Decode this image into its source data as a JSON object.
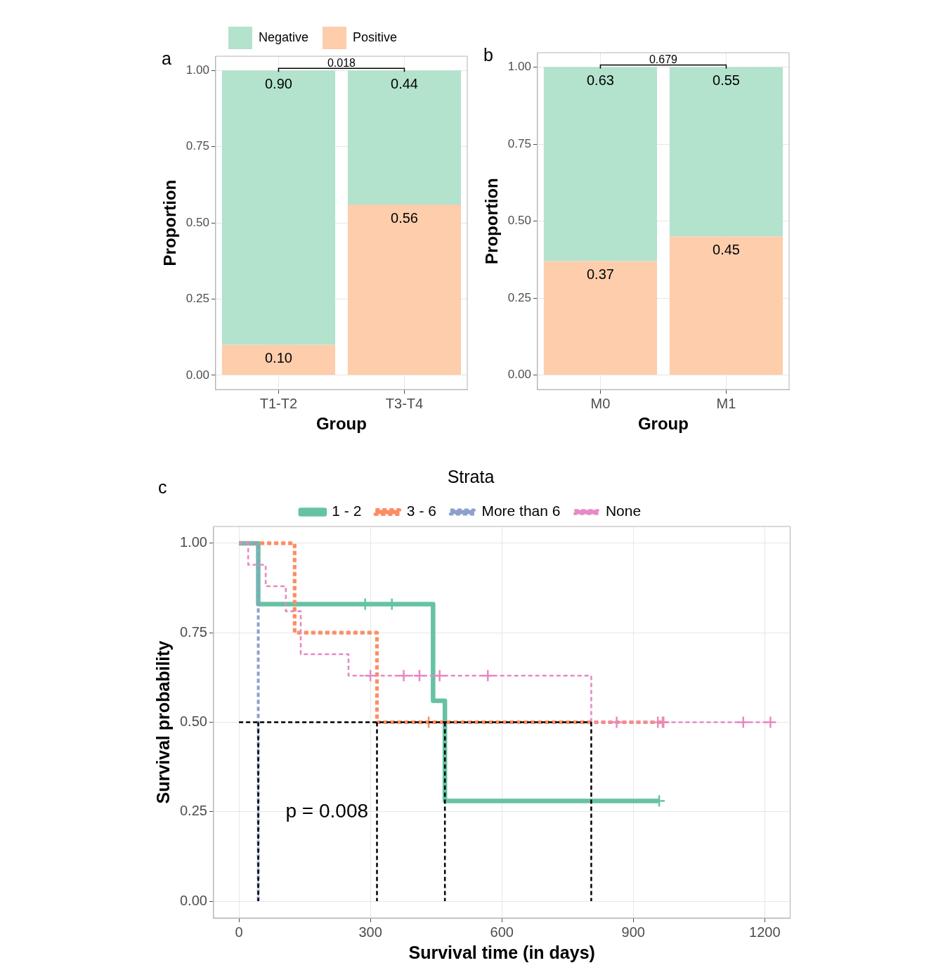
{
  "chart_data": [
    {
      "type": "bar",
      "stacked": true,
      "categories": [
        "T1-T2",
        "T3-T4"
      ],
      "xlabel": "Group",
      "ylabel": "Proportion",
      "ylim": [
        -0.047,
        1.047
      ],
      "yticks": [
        {
          "value": 0,
          "label": "0.00"
        },
        {
          "value": 0.25,
          "label": "0.25"
        },
        {
          "value": 0.5,
          "label": "0.50"
        },
        {
          "value": 0.75,
          "label": "0.75"
        },
        {
          "value": 1,
          "label": "1.00"
        }
      ],
      "grid": true,
      "legend": "top",
      "annotations": [
        "a",
        "0.018"
      ],
      "series": [
        {
          "name": "Positive",
          "color": "#fdcdac",
          "values": [
            0.1,
            0.56
          ],
          "value_labels": [
            "0.10",
            "0.56"
          ]
        },
        {
          "name": "Negative",
          "color": "#b3e2cd",
          "values": [
            0.9,
            0.44
          ],
          "value_labels": [
            "0.90",
            "0.44"
          ]
        }
      ]
    },
    {
      "type": "bar",
      "stacked": true,
      "categories": [
        "M0",
        "M1"
      ],
      "xlabel": "Group",
      "ylabel": "Proportion",
      "ylim": [
        -0.047,
        1.047
      ],
      "yticks": [
        {
          "value": 0,
          "label": "0.00"
        },
        {
          "value": 0.25,
          "label": "0.25"
        },
        {
          "value": 0.5,
          "label": "0.50"
        },
        {
          "value": 0.75,
          "label": "0.75"
        },
        {
          "value": 1,
          "label": "1.00"
        }
      ],
      "grid": true,
      "annotations": [
        "b",
        "0.679"
      ],
      "series": [
        {
          "color": "#fdcdac",
          "values": [
            0.37,
            0.45
          ],
          "value_labels": [
            "0.37",
            "0.45"
          ]
        },
        {
          "color": "#b3e2cd",
          "values": [
            0.63,
            0.55
          ],
          "value_labels": [
            "0.63",
            "0.55"
          ]
        }
      ]
    },
    {
      "type": "step",
      "xlabel": "Survival time (in days)",
      "ylabel": "Survival probability",
      "xlim": [
        -58,
        1258
      ],
      "ylim": [
        -0.047,
        1.047
      ],
      "xticks": [
        0,
        300,
        600,
        900,
        1200
      ],
      "yticks": [
        {
          "value": 0,
          "label": "0.00"
        },
        {
          "value": 0.25,
          "label": "0.25"
        },
        {
          "value": 0.5,
          "label": "0.50"
        },
        {
          "value": 0.75,
          "label": "0.75"
        },
        {
          "value": 1,
          "label": "1.00"
        }
      ],
      "grid": true,
      "legend": "top",
      "legend_title": "Strata",
      "annotations": [
        "c",
        "p = 0.008"
      ],
      "series": [
        {
          "name": "1 - 2",
          "color": "#66c2a5",
          "line_style": "solid",
          "x": [
            0,
            44,
            443,
            470,
            959
          ],
          "values": [
            1,
            0.83,
            0.56,
            0.28,
            0.28
          ]
        },
        {
          "name": "3 - 6",
          "color": "#fc8d62",
          "line_style": "dashed",
          "x": [
            0,
            127,
            315,
            970
          ],
          "values": [
            1,
            0.75,
            0.5,
            0.5
          ]
        },
        {
          "name": "More than 6",
          "color": "#8da0cb",
          "line_style": "dashed",
          "x": [
            0,
            44
          ],
          "values": [
            1,
            0
          ]
        },
        {
          "name": "None",
          "color": "#e78ac3",
          "line_style": "dashed",
          "x": [
            0,
            21,
            61,
            107,
            141,
            250,
            804,
            1215
          ],
          "values": [
            1,
            0.94,
            0.88,
            0.81,
            0.69,
            0.63,
            0.5,
            0.5
          ]
        },
        {
          "type": "scatter",
          "marker": "cross",
          "color": "#66c2a5",
          "x": [
            288,
            349,
            959
          ],
          "values": [
            0.83,
            0.83,
            0.28
          ]
        },
        {
          "type": "scatter",
          "marker": "cross",
          "color": "#fc8d62",
          "x": [
            433,
            967
          ],
          "values": [
            0.5,
            0.5
          ]
        },
        {
          "type": "scatter",
          "marker": "cross",
          "color": "#e78ac3",
          "x": [
            300,
            376,
            412,
            458,
            568,
            862,
            956,
            969,
            1151,
            1213
          ],
          "values": [
            0.63,
            0.63,
            0.63,
            0.63,
            0.63,
            0.5,
            0.5,
            0.5,
            0.5,
            0.5
          ]
        },
        {
          "type": "line",
          "color": "#000000",
          "line_style": "dashed",
          "x": [
            0,
            804
          ],
          "values": [
            0.5,
            0.5
          ]
        },
        {
          "type": "line",
          "color": "#000000",
          "line_style": "dashed",
          "x": [
            804,
            804
          ],
          "values": [
            0.5,
            0
          ]
        },
        {
          "type": "line",
          "color": "#000000",
          "line_style": "dashed",
          "x": [
            470,
            470
          ],
          "values": [
            0.5,
            0
          ]
        },
        {
          "type": "line",
          "color": "#000000",
          "line_style": "dashed",
          "x": [
            315,
            315
          ],
          "values": [
            0.5,
            0
          ]
        },
        {
          "type": "line",
          "color": "#000000",
          "line_style": "dashed",
          "x": [
            44,
            44
          ],
          "values": [
            0.5,
            0
          ]
        }
      ]
    }
  ]
}
